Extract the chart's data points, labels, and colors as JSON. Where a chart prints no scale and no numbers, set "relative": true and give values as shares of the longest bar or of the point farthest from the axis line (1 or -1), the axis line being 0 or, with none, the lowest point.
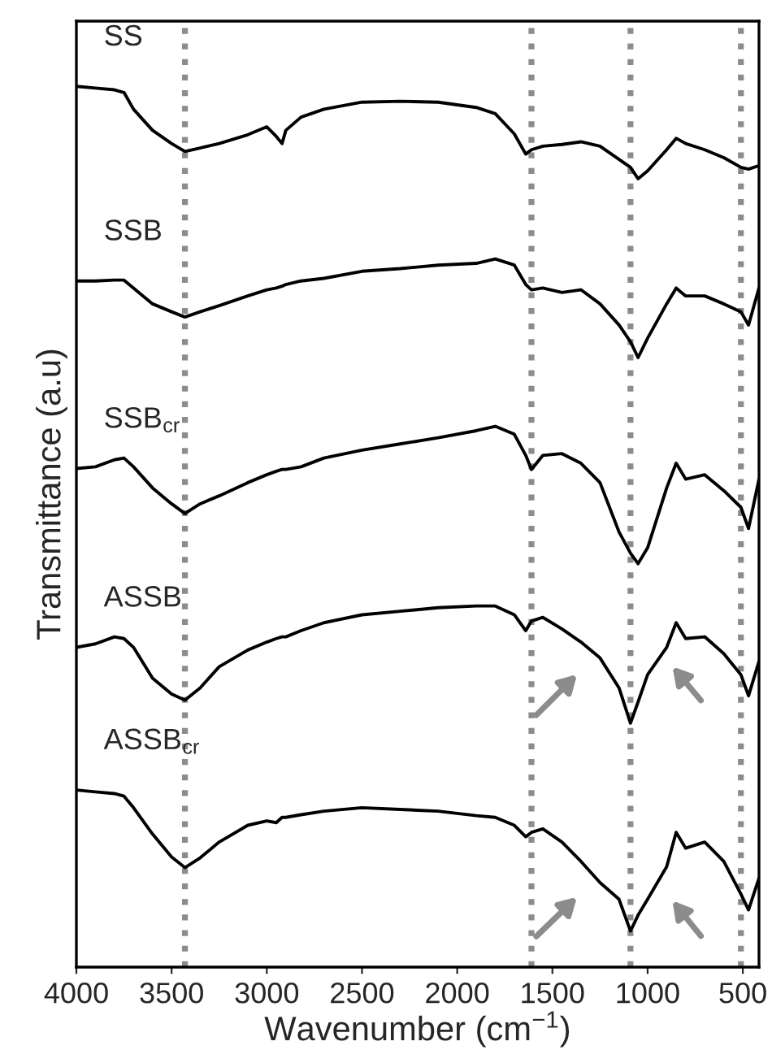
{
  "chart_data": {
    "type": "line",
    "xlabel": "Wavenumber (cm$^{−1}$)",
    "ylabel": "Transmittance (a.u)",
    "relative": true,
    "x": [
      4000,
      3900,
      3800,
      3750,
      3700,
      3600,
      3500,
      3430,
      3350,
      3250,
      3100,
      3000,
      2950,
      2920,
      2900,
      2820,
      2700,
      2500,
      2300,
      2100,
      1900,
      1800,
      1700,
      1640,
      1610,
      1550,
      1450,
      1350,
      1250,
      1150,
      1090,
      1050,
      1000,
      900,
      850,
      800,
      700,
      600,
      510,
      470,
      415
    ],
    "xlim": [
      4000,
      415
    ],
    "xticks": [
      4000,
      3500,
      3000,
      2500,
      2000,
      1500,
      1000,
      500
    ],
    "tick_labels": "x",
    "grid": false,
    "legend": false,
    "line_style": "solid",
    "marker": "none",
    "series": [
      {
        "name": "SS",
        "color": "#000000",
        "values": [
          1.0,
          0.998,
          0.996,
          0.993,
          0.974,
          0.95,
          0.935,
          0.926,
          0.93,
          0.935,
          0.945,
          0.954,
          0.943,
          0.935,
          0.95,
          0.965,
          0.974,
          0.982,
          0.983,
          0.982,
          0.976,
          0.969,
          0.946,
          0.923,
          0.928,
          0.932,
          0.934,
          0.937,
          0.932,
          0.917,
          0.908,
          0.895,
          0.904,
          0.928,
          0.941,
          0.935,
          0.928,
          0.919,
          0.908,
          0.906,
          0.91
        ]
      },
      {
        "name": "SSB",
        "color": "#000000",
        "values": [
          0.779,
          0.779,
          0.78,
          0.78,
          0.771,
          0.753,
          0.744,
          0.738,
          0.744,
          0.751,
          0.762,
          0.769,
          0.771,
          0.773,
          0.775,
          0.779,
          0.782,
          0.79,
          0.793,
          0.797,
          0.799,
          0.804,
          0.797,
          0.775,
          0.769,
          0.771,
          0.766,
          0.769,
          0.753,
          0.729,
          0.71,
          0.692,
          0.714,
          0.753,
          0.771,
          0.762,
          0.762,
          0.753,
          0.744,
          0.729,
          0.771
        ]
      },
      {
        "name": "SSB$_{cr}$",
        "color": "#000000",
        "values": [
          0.566,
          0.568,
          0.576,
          0.578,
          0.568,
          0.544,
          0.526,
          0.515,
          0.526,
          0.535,
          0.55,
          0.559,
          0.563,
          0.565,
          0.565,
          0.568,
          0.578,
          0.587,
          0.594,
          0.601,
          0.609,
          0.614,
          0.605,
          0.581,
          0.565,
          0.581,
          0.583,
          0.572,
          0.55,
          0.494,
          0.47,
          0.458,
          0.476,
          0.544,
          0.572,
          0.554,
          0.559,
          0.541,
          0.522,
          0.498,
          0.554
        ]
      },
      {
        "name": "ASSB",
        "color": "#000000",
        "values": [
          0.363,
          0.367,
          0.375,
          0.373,
          0.363,
          0.328,
          0.31,
          0.303,
          0.317,
          0.341,
          0.36,
          0.369,
          0.373,
          0.375,
          0.375,
          0.382,
          0.391,
          0.4,
          0.404,
          0.408,
          0.41,
          0.41,
          0.4,
          0.382,
          0.393,
          0.397,
          0.384,
          0.369,
          0.351,
          0.317,
          0.277,
          0.301,
          0.332,
          0.363,
          0.391,
          0.373,
          0.375,
          0.356,
          0.332,
          0.308,
          0.347
        ]
      },
      {
        "name": "ASSB$_{cr}$",
        "color": "#000000",
        "values": [
          0.201,
          0.199,
          0.197,
          0.194,
          0.181,
          0.151,
          0.125,
          0.113,
          0.124,
          0.142,
          0.161,
          0.166,
          0.164,
          0.17,
          0.17,
          0.173,
          0.177,
          0.181,
          0.179,
          0.177,
          0.172,
          0.17,
          0.161,
          0.148,
          0.153,
          0.157,
          0.142,
          0.12,
          0.096,
          0.077,
          0.041,
          0.059,
          0.077,
          0.114,
          0.153,
          0.135,
          0.142,
          0.12,
          0.083,
          0.065,
          0.101
        ]
      }
    ],
    "ref_lines": [
      {
        "axis": "x",
        "value": 3430,
        "color": "#8c8c8c",
        "line_style": "dotted"
      },
      {
        "axis": "x",
        "value": 1610,
        "color": "#8c8c8c",
        "line_style": "dotted"
      },
      {
        "axis": "x",
        "value": 1090,
        "color": "#8c8c8c",
        "line_style": "dotted"
      },
      {
        "axis": "x",
        "value": 510,
        "color": "#8c8c8c",
        "line_style": "dotted"
      }
    ]
  }
}
